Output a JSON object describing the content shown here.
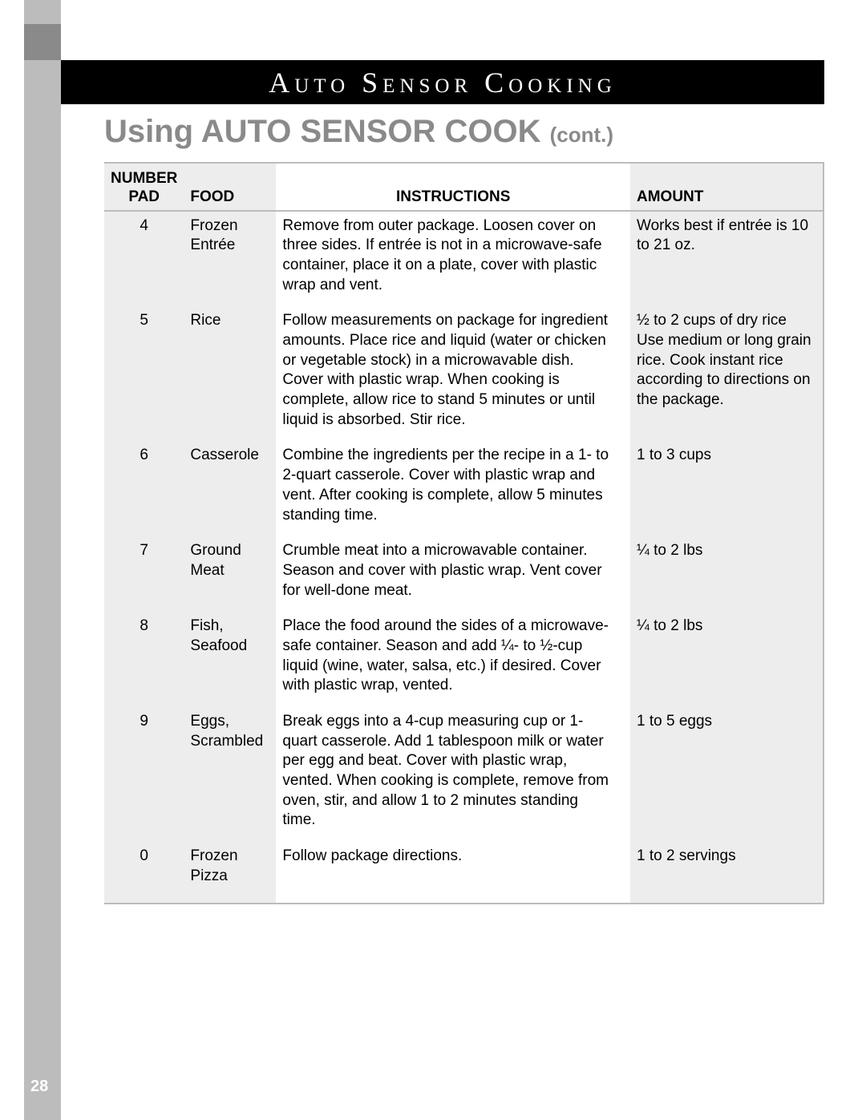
{
  "page_number": "28",
  "header": {
    "banner_title": "Auto Sensor Cooking",
    "subtitle_main": "Using AUTO SENSOR COOK",
    "subtitle_suffix": "(cont.)"
  },
  "colors": {
    "strip": "#bcbcbc",
    "tab": "#8a8a8a",
    "banner_bg": "#000000",
    "banner_text": "#ffffff",
    "subtitle": "#8a8a8a",
    "shade_bg": "#ededed",
    "border": "#bcbcbc",
    "body_text": "#000000"
  },
  "table": {
    "headers": {
      "pad": "NUMBER PAD",
      "food": "FOOD",
      "instructions": "INSTRUCTIONS",
      "amount": "AMOUNT"
    },
    "rows": [
      {
        "pad": "4",
        "food": "Frozen Entrée",
        "instructions": "Remove from outer package. Loosen cover on three sides. If entrée is not in a microwave-safe container, place it on a plate, cover with plastic wrap and vent.",
        "amount": "Works best if entrée is 10 to 21 oz."
      },
      {
        "pad": "5",
        "food": "Rice",
        "instructions": "Follow measurements on package for ingredient amounts. Place rice and liquid (water or chicken or vegetable stock) in a microwavable dish. Cover with plastic wrap. When cooking is complete, allow rice to stand 5 minutes or until liquid is absorbed. Stir rice.",
        "amount": "½ to 2 cups of dry rice Use medium or long grain rice. Cook instant rice according to directions on the package."
      },
      {
        "pad": "6",
        "food": "Casserole",
        "instructions": "Combine the ingredients per the recipe in a 1- to 2-quart casserole. Cover with plastic wrap and vent. After cooking is complete, allow 5 minutes standing time.",
        "amount": "1 to 3 cups"
      },
      {
        "pad": "7",
        "food": "Ground Meat",
        "instructions": "Crumble meat into a microwavable container. Season and cover with plastic wrap. Vent cover for well-done meat.",
        "amount": "¼ to 2 lbs"
      },
      {
        "pad": "8",
        "food": "Fish, Seafood",
        "instructions": "Place the food around the sides of a microwave-safe container. Season and add ¼- to ½-cup liquid (wine, water, salsa, etc.) if desired. Cover with plastic wrap, vented.",
        "amount": "¼ to 2 lbs"
      },
      {
        "pad": "9",
        "food": "Eggs, Scrambled",
        "instructions": "Break eggs into a 4-cup measuring cup or 1-quart casserole. Add 1 tablespoon milk or water per egg and beat. Cover with plastic wrap, vented. When cooking is complete, remove from oven, stir, and allow 1 to 2 minutes standing time.",
        "amount": "1 to 5 eggs"
      },
      {
        "pad": "0",
        "food": "Frozen Pizza",
        "instructions": "Follow package directions.",
        "amount": "1 to 2 servings"
      }
    ]
  }
}
